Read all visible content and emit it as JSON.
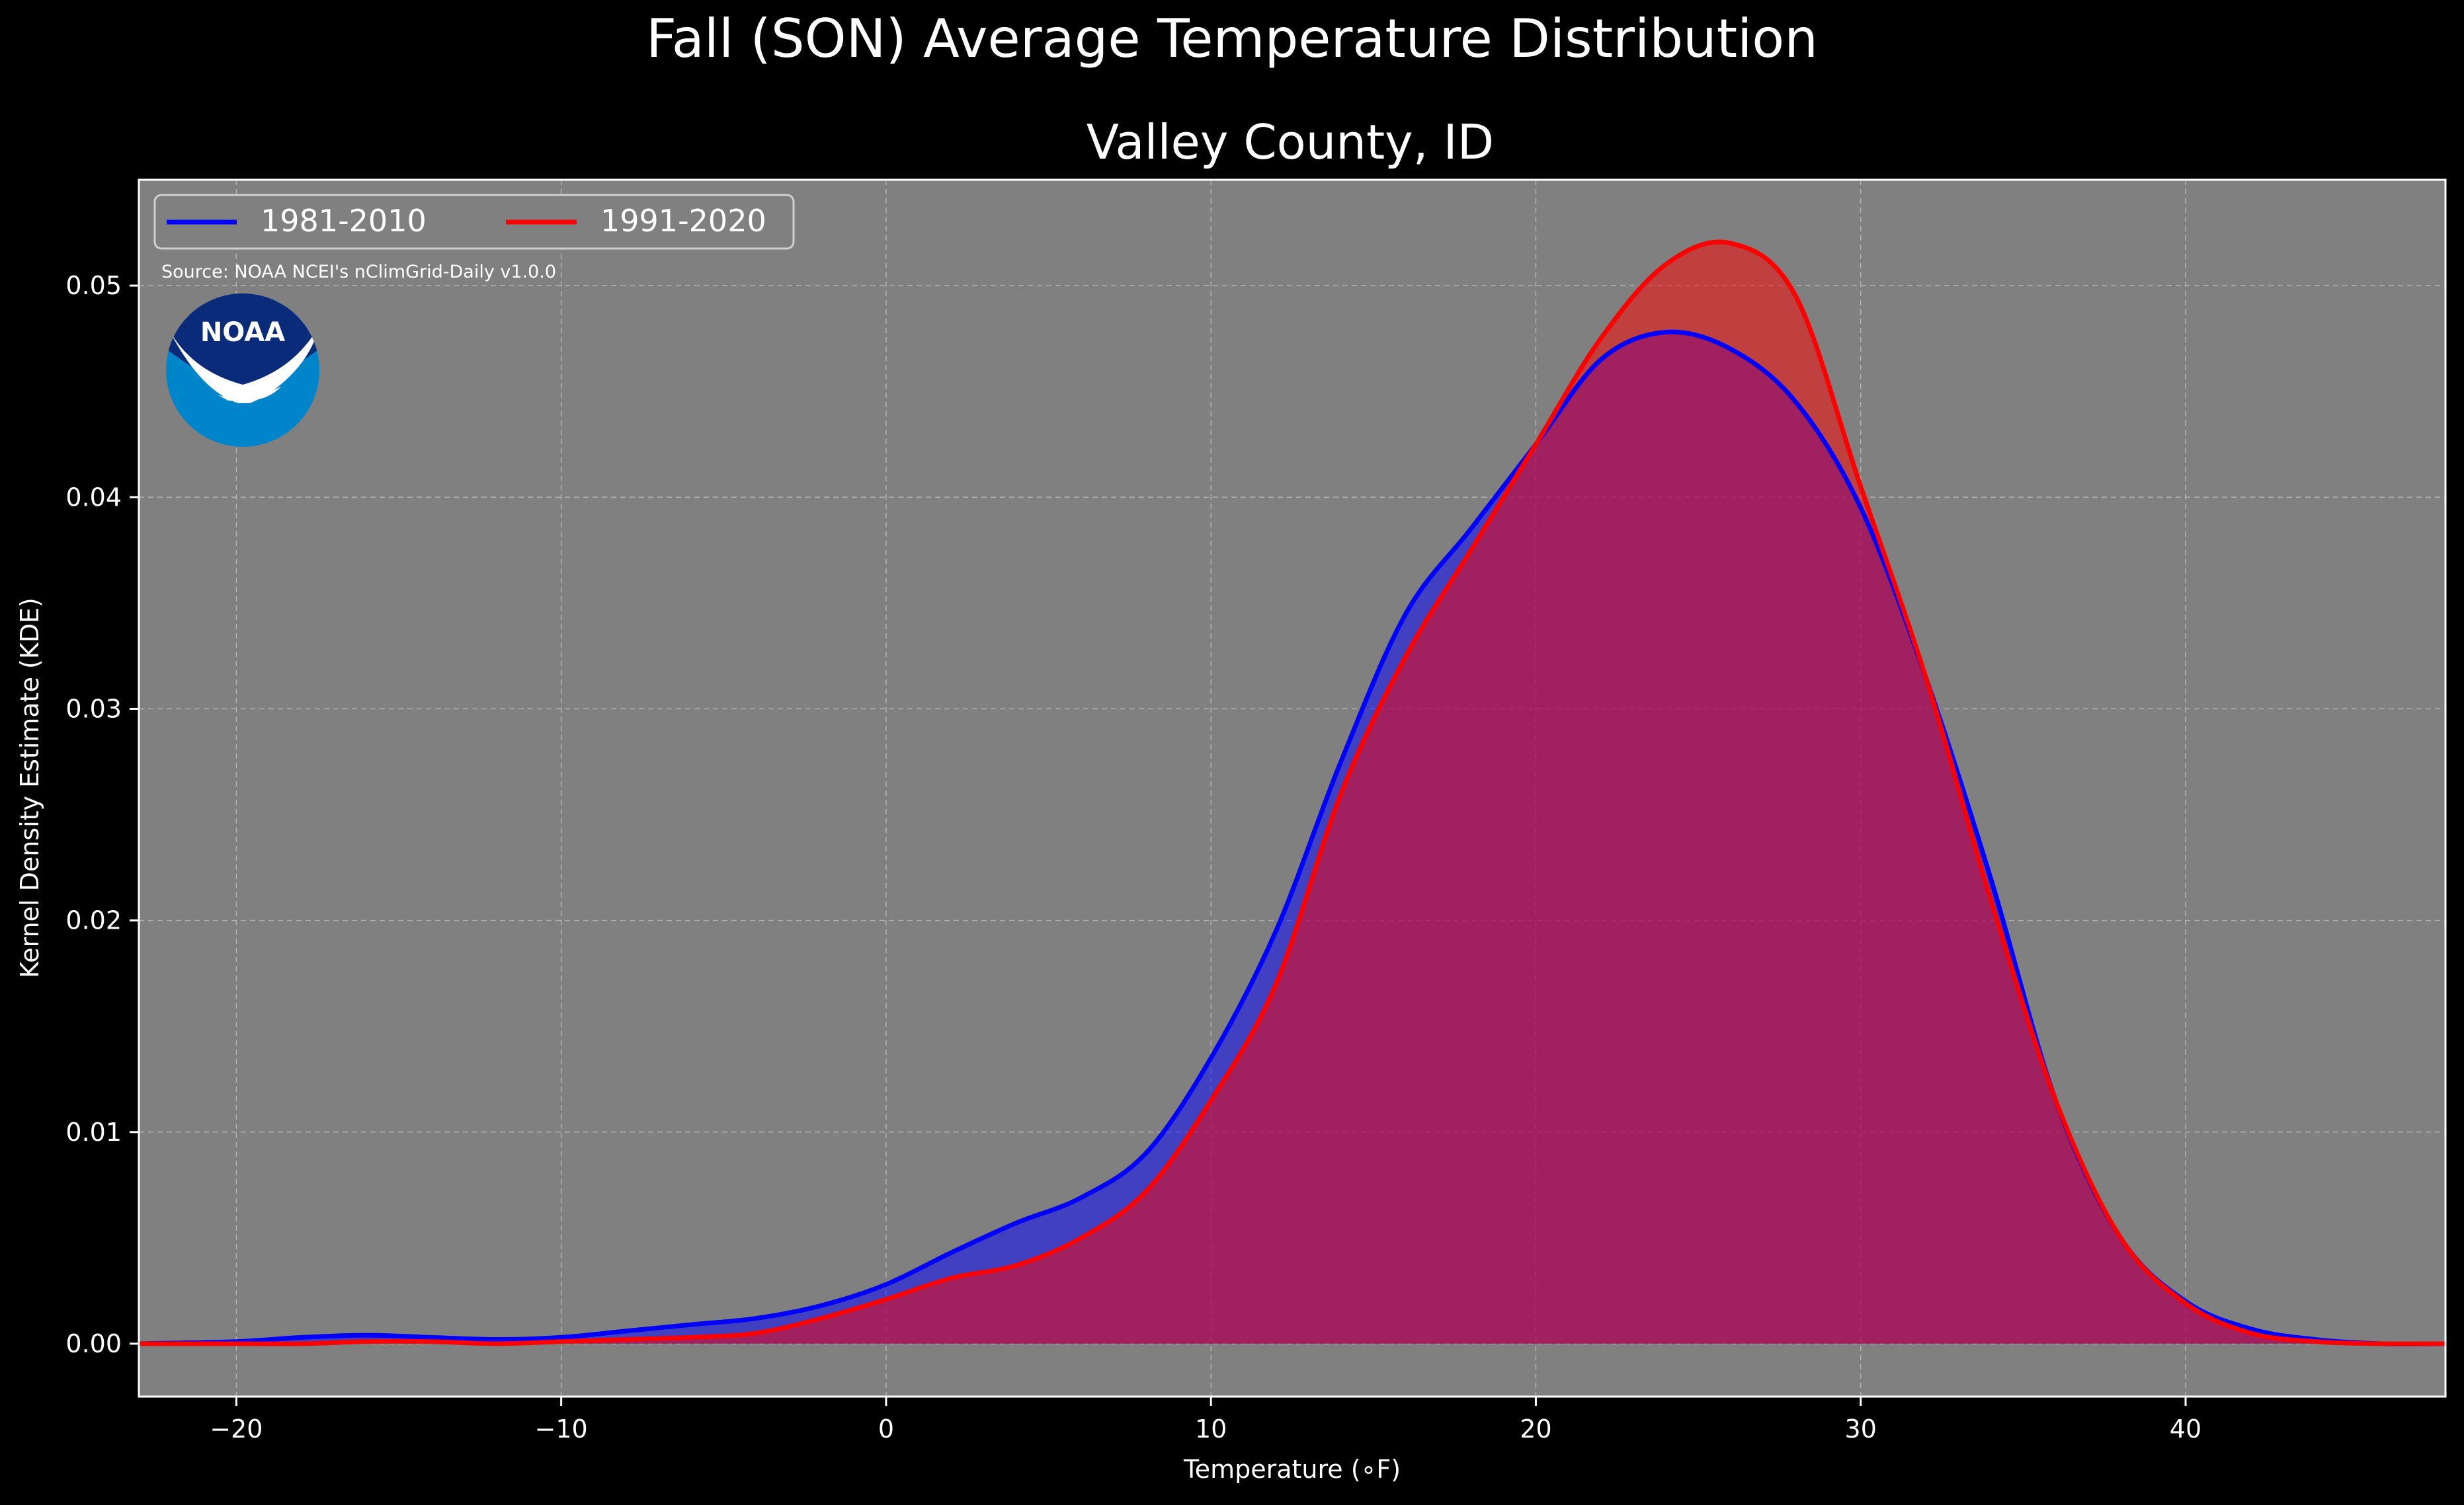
{
  "chart_data": {
    "type": "area",
    "title": "Fall (SON) Average Temperature Distribution",
    "subtitle": "Valley County, ID",
    "xlabel": "Temperature (∘F)",
    "ylabel": "Kernel Density Estimate (KDE)",
    "source_note": "Source: NOAA NCEI's nClimGrid-Daily v1.0.0",
    "logo_text": "NOAA",
    "xlim": [
      -23,
      48
    ],
    "ylim": [
      -0.0025,
      0.055
    ],
    "x_ticks": [
      -20,
      -10,
      0,
      10,
      20,
      30,
      40
    ],
    "x_tick_labels": [
      "−20",
      "−10",
      "0",
      "10",
      "20",
      "30",
      "40"
    ],
    "y_ticks": [
      0.0,
      0.01,
      0.02,
      0.03,
      0.04,
      0.05
    ],
    "y_tick_labels": [
      "0.00",
      "0.01",
      "0.02",
      "0.03",
      "0.04",
      "0.05"
    ],
    "grid": true,
    "legend_position": "top-left",
    "background": "#808080",
    "series": [
      {
        "name": "1981-2010",
        "color": "#0000ff",
        "fill_color": "#0000ff",
        "x": [
          -23,
          -20,
          -18,
          -16,
          -14,
          -12,
          -10,
          -8,
          -6,
          -4,
          -2,
          0,
          2,
          4,
          6,
          8,
          10,
          12,
          14,
          16,
          18,
          20,
          22,
          24,
          26,
          28,
          30,
          32,
          34,
          36,
          38,
          40,
          42,
          44,
          46,
          48
        ],
        "values": [
          0.0,
          0.0001,
          0.0003,
          0.0004,
          0.0003,
          0.0002,
          0.0003,
          0.0006,
          0.0009,
          0.0012,
          0.0018,
          0.0028,
          0.0043,
          0.0057,
          0.0069,
          0.009,
          0.0135,
          0.0195,
          0.0275,
          0.0345,
          0.0385,
          0.0425,
          0.0465,
          0.0478,
          0.047,
          0.0445,
          0.0395,
          0.0315,
          0.022,
          0.0115,
          0.005,
          0.002,
          0.0007,
          0.0002,
          0.0,
          0.0
        ]
      },
      {
        "name": "1991-2020",
        "color": "#ff0000",
        "fill_color": "#ff0000",
        "x": [
          -23,
          -20,
          -18,
          -16,
          -14,
          -12,
          -10,
          -8,
          -6,
          -4,
          -2,
          0,
          2,
          4,
          6,
          8,
          10,
          12,
          14,
          16,
          18,
          20,
          22,
          24,
          26,
          28,
          30,
          32,
          34,
          36,
          38,
          40,
          42,
          44,
          46,
          48
        ],
        "values": [
          0.0,
          0.0,
          0.0,
          0.0001,
          0.0001,
          0.0,
          0.0001,
          0.0002,
          0.0003,
          0.0005,
          0.0012,
          0.0021,
          0.0031,
          0.0037,
          0.005,
          0.0072,
          0.0115,
          0.017,
          0.026,
          0.0325,
          0.0375,
          0.0425,
          0.0475,
          0.051,
          0.052,
          0.0495,
          0.0405,
          0.0315,
          0.021,
          0.0115,
          0.005,
          0.0019,
          0.0005,
          0.0001,
          0.0,
          0.0
        ]
      }
    ]
  }
}
